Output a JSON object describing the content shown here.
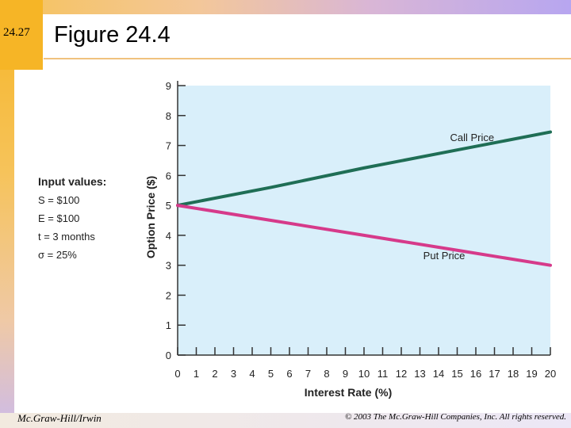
{
  "slide": {
    "number": "24.27",
    "title": "Figure 24.4",
    "footer_left": "Mc.Graw-Hill/Irwin",
    "footer_right": "© 2003 The Mc.Graw-Hill Companies, Inc. All rights reserved."
  },
  "inputs": {
    "header": "Input values:",
    "items": [
      "S = $100",
      "E = $100",
      "t = 3 months",
      "σ = 25%"
    ]
  },
  "chart_data": {
    "type": "line",
    "xlabel": "Interest Rate (%)",
    "ylabel": "Option Price ($)",
    "xlim": [
      0,
      20
    ],
    "ylim": [
      0,
      9
    ],
    "xticks": [
      0,
      1,
      2,
      3,
      4,
      5,
      6,
      7,
      8,
      9,
      10,
      11,
      12,
      13,
      14,
      15,
      16,
      17,
      18,
      19,
      20
    ],
    "yticks": [
      0,
      1,
      2,
      3,
      4,
      5,
      6,
      7,
      8,
      9
    ],
    "series": [
      {
        "name": "Call Price",
        "color": "#1f6e55",
        "x": [
          0,
          5,
          10,
          15,
          20
        ],
        "y": [
          5.0,
          5.6,
          6.25,
          6.85,
          7.45
        ]
      },
      {
        "name": "Put Price",
        "color": "#d63a8a",
        "x": [
          0,
          5,
          10,
          15,
          20
        ],
        "y": [
          5.0,
          4.5,
          4.0,
          3.5,
          3.0
        ]
      }
    ],
    "colors": {
      "plot_bg": "#d9effa"
    }
  }
}
